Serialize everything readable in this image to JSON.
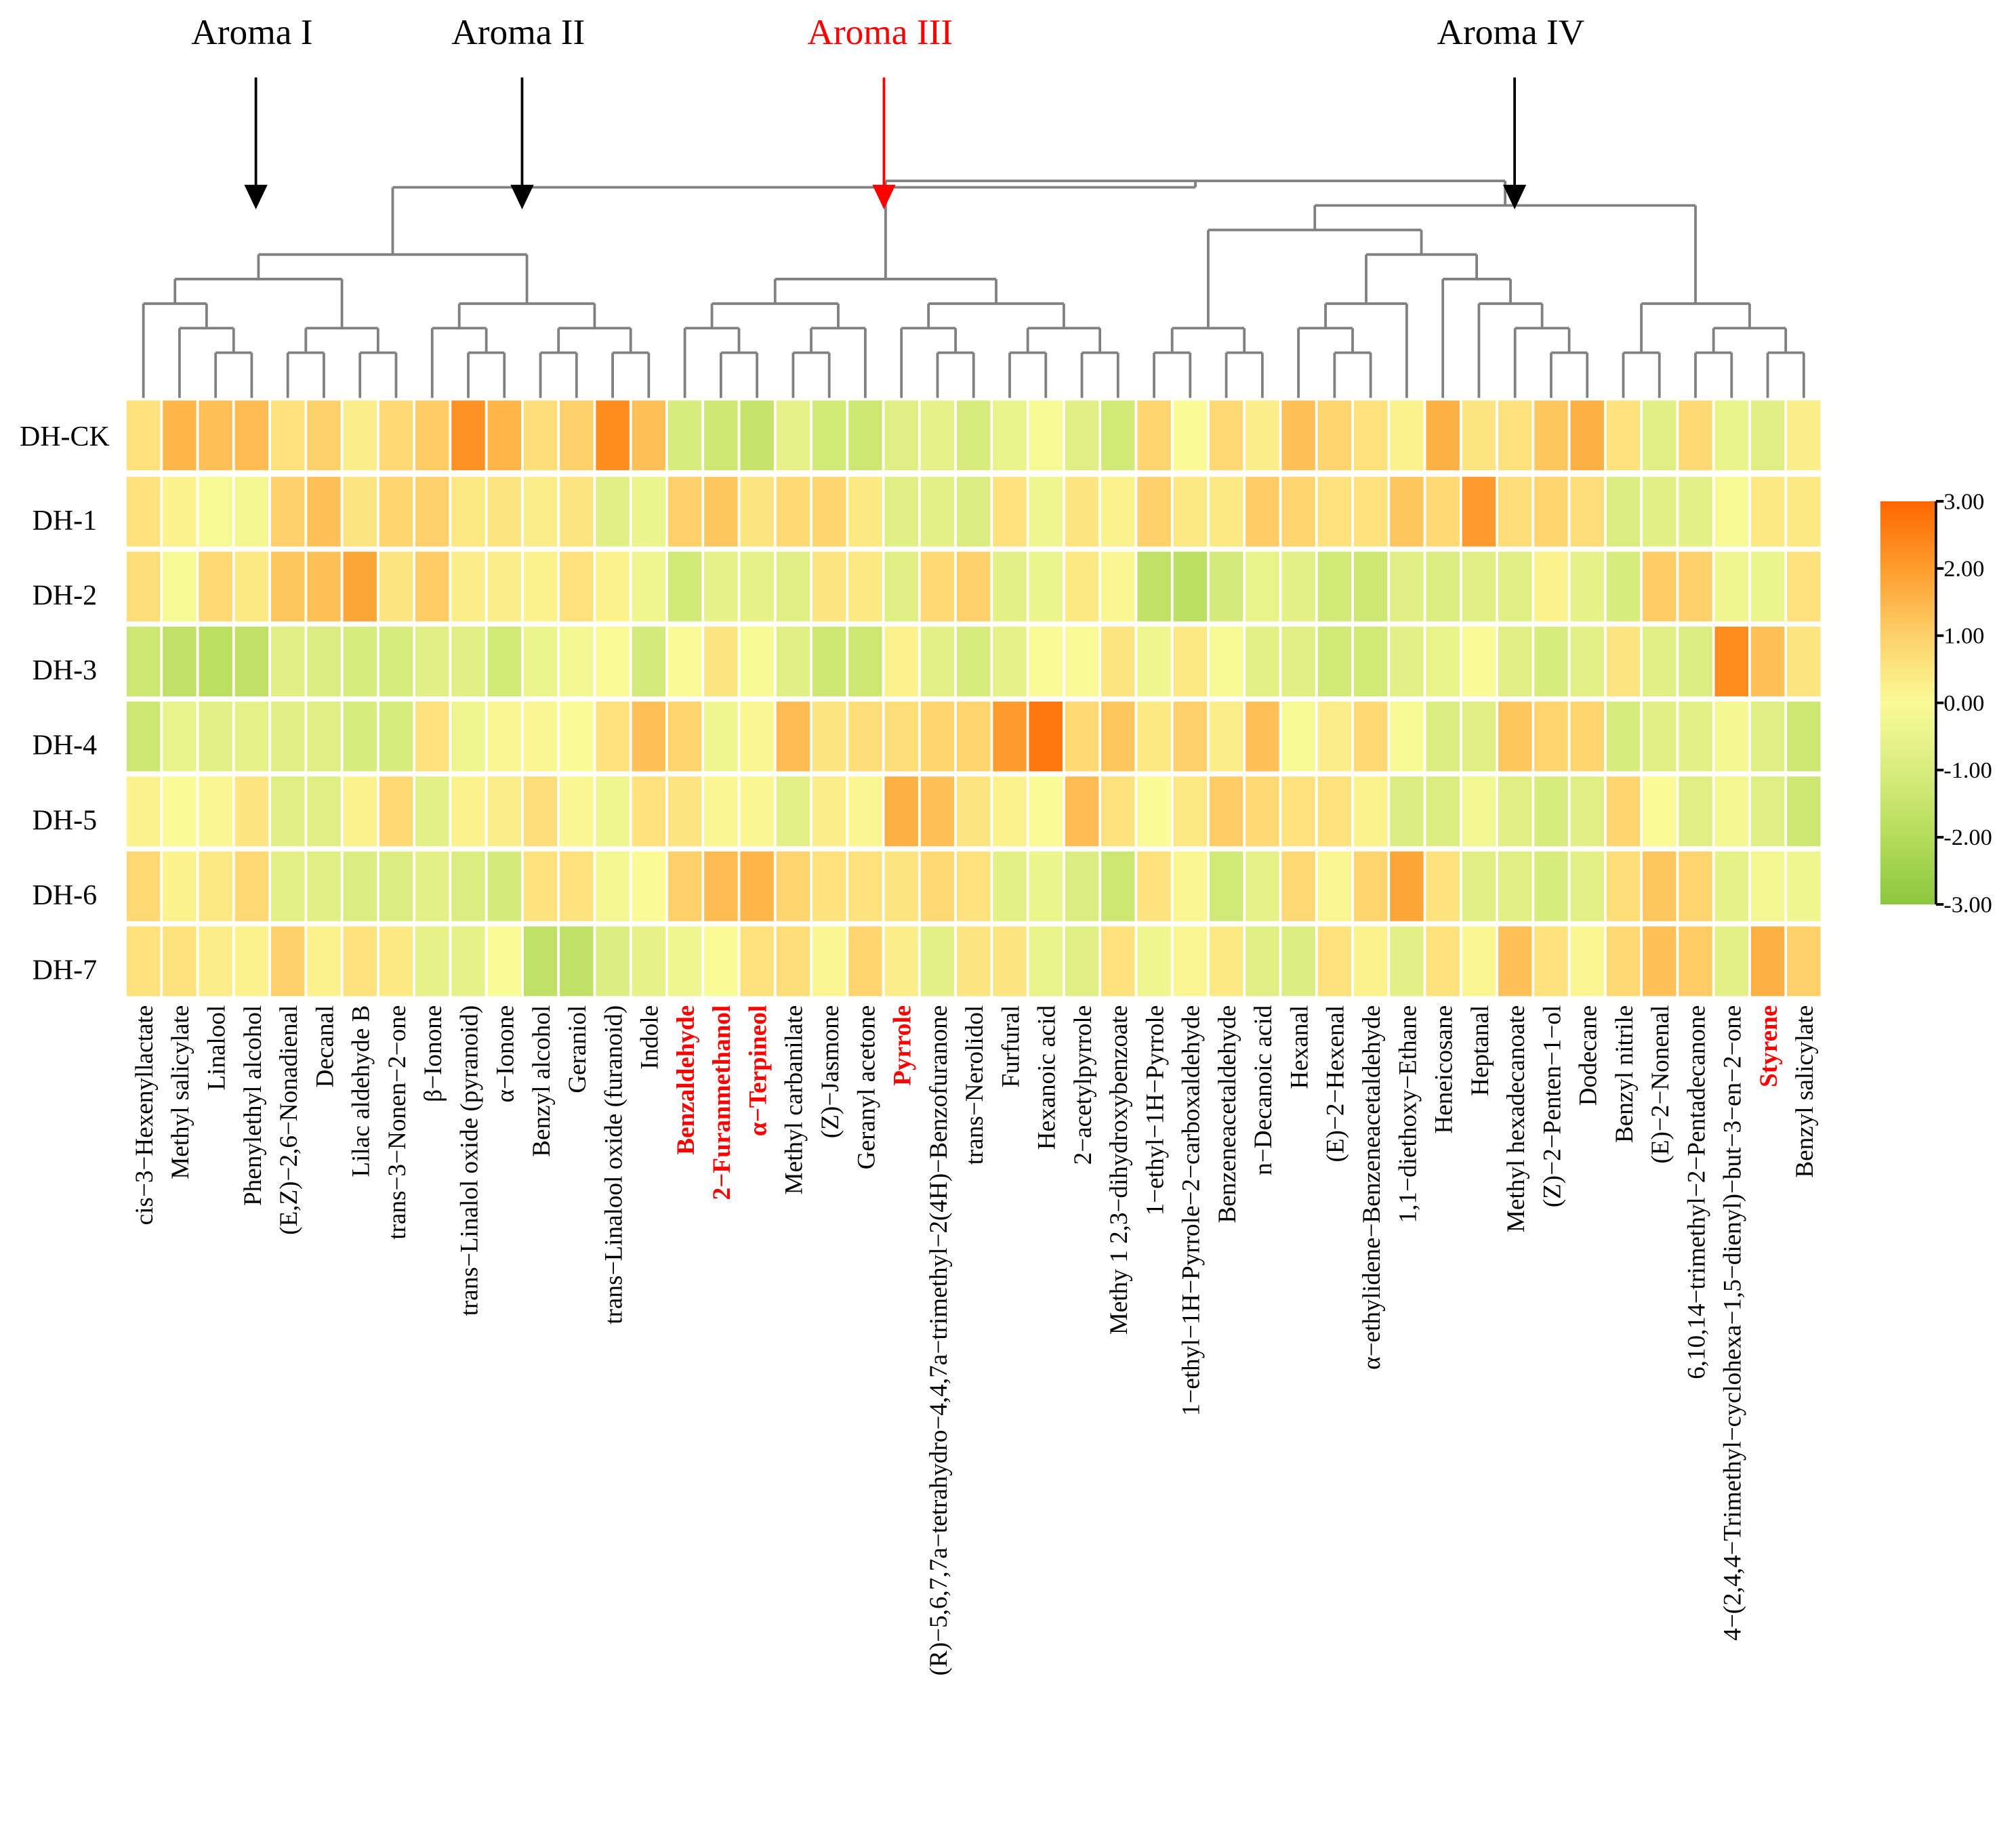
{
  "chart_data": {
    "type": "heatmap",
    "title": "",
    "groups": [
      {
        "label": "Aroma I",
        "color": "#000000"
      },
      {
        "label": "Aroma II",
        "color": "#000000"
      },
      {
        "label": "Aroma III",
        "color": "#ff0000"
      },
      {
        "label": "Aroma IV",
        "color": "#000000"
      }
    ],
    "rows": [
      "DH-CK",
      "DH-1",
      "DH-2",
      "DH-3",
      "DH-4",
      "DH-5",
      "DH-6",
      "DH-7"
    ],
    "columns": [
      "cis−3−Hexenyllactate",
      "Methyl salicylate",
      "Linalool",
      "Phenylethyl alcohol",
      "(E,Z)−2,6−Nonadienal",
      "Decanal",
      "Lilac aldehyde B",
      "trans−3−Nonen−2−one",
      "β−Ionone",
      "trans−Linalol oxide (pyranoid)",
      "α−Ionone",
      "Benzyl alcohol",
      "Geraniol",
      "trans−Linalool oxide (furanoid)",
      "Indole",
      "Benzaldehyde",
      "2−Furanmethanol",
      "α−Terpineol",
      "Methyl carbanilate",
      "(Z)−Jasmone",
      "Geranyl acetone",
      "Pyrrole",
      "(R)−5,6,7,7a−tetrahydro−4,4,7a−trimethyl−2(4H)−Benzofuranone",
      "trans−Nerolidol",
      "Furfural",
      "Hexanoic acid",
      "2−acetylpyrrole",
      "Methy 1 2,3−dihydroxybenzoate",
      "1−ethyl−1H−Pyrrole",
      "1−ethyl−1H−Pyrrole−2−carboxaldehyde",
      "Benzeneacetaldehyde",
      "n−Decanoic acid",
      "Hexanal",
      "(E)−2−Hexenal",
      "α−ethylidene−Benzeneacetaldehyde",
      "1,1−diethoxy−Ethane",
      "Heneicosane",
      "Heptanal",
      "Methyl hexadecanoate",
      "(Z)−2−Penten−1−ol",
      "Dodecane",
      "Benzyl nitrile",
      "(E)−2−Nonenal",
      "6,10,14−trimethyl−2−Pentadecanone",
      "4−(2,4,4−Trimethyl−cyclohexa−1,5−dienyl)−but−3−en−2−one",
      "Styrene",
      "Benzyl salicylate"
    ],
    "highlighted_columns": [
      "Benzaldehyde",
      "2−Furanmethanol",
      "α−Terpineol",
      "Pyrrole",
      "Styrene"
    ],
    "highlight_color": "#ff0000",
    "column_groups": [
      [
        1,
        8
      ],
      [
        9,
        15
      ],
      [
        16,
        28
      ],
      [
        29,
        47
      ]
    ],
    "column_tree": [
      [
        [
          [
            1,
            [
              2,
              [
                3,
                4
              ]
            ]
          ],
          [
            [
              5,
              6
            ],
            [
              7,
              8
            ]
          ]
        ],
        [
          [
            9,
            [
              10,
              11
            ]
          ],
          [
            [
              12,
              13
            ],
            [
              14,
              15
            ]
          ]
        ]
      ],
      [
        [
          [
            [
              16,
              [
                17,
                18
              ]
            ],
            [
              [
                19,
                20
              ],
              21
            ]
          ],
          [
            [
              22,
              [
                23,
                24
              ]
            ],
            [
              [
                25,
                26
              ],
              [
                27,
                28
              ]
            ]
          ]
        ],
        [
          [
            [
              [
                29,
                30
              ],
              [
                31,
                32
              ]
            ],
            [
              [
                [
                  33,
                  [
                    34,
                    35
                  ]
                ],
                36
              ],
              [
                37,
                [
                  38,
                  [
                    39,
                    [
                      40,
                      41
                    ]
                  ]
                ]
              ]
            ]
          ],
          [
            [
              42,
              43
            ],
            [
              [
                44,
                45
              ],
              [
                46,
                47
              ]
            ]
          ]
        ]
      ]
    ],
    "values": [
      [
        0.6,
        1.5,
        1.3,
        1.4,
        0.6,
        1.0,
        0.3,
        0.8,
        1.1,
        2.2,
        1.5,
        0.7,
        1.0,
        2.3,
        1.3,
        -1.0,
        -1.3,
        -1.5,
        -0.6,
        -1.2,
        -1.3,
        -0.8,
        -0.6,
        -1.0,
        -0.5,
        -0.1,
        -0.8,
        -1.2,
        0.9,
        0.0,
        0.8,
        0.3,
        1.3,
        0.9,
        0.6,
        0.2,
        1.6,
        0.5,
        0.6,
        1.2,
        1.6,
        0.6,
        -0.8,
        0.8,
        -0.5,
        -0.8,
        0.3
      ],
      [
        0.6,
        0.2,
        -0.1,
        -0.2,
        1.0,
        1.3,
        0.5,
        0.9,
        1.0,
        0.4,
        0.5,
        0.3,
        0.5,
        -0.8,
        -0.4,
        1.0,
        1.2,
        0.5,
        0.8,
        0.9,
        0.4,
        -0.8,
        -0.7,
        -0.9,
        0.6,
        -0.3,
        0.5,
        0.2,
        1.0,
        0.4,
        0.4,
        1.1,
        0.9,
        0.6,
        0.6,
        1.2,
        0.8,
        2.0,
        0.7,
        0.9,
        0.7,
        -0.9,
        -0.8,
        -0.7,
        -0.1,
        0.4,
        0.4
      ],
      [
        0.7,
        -0.1,
        0.8,
        0.4,
        1.2,
        1.3,
        1.8,
        0.5,
        1.1,
        0.3,
        0.3,
        0.2,
        0.6,
        0.2,
        -0.3,
        -1.2,
        -0.6,
        -0.6,
        -0.8,
        0.5,
        0.4,
        -0.8,
        0.8,
        1.0,
        -0.7,
        -0.4,
        0.4,
        0.1,
        -1.7,
        -1.8,
        -1.1,
        -0.5,
        -0.7,
        -1.2,
        -1.3,
        -0.8,
        -0.9,
        -0.8,
        -0.8,
        0.2,
        -0.6,
        -1.0,
        1.1,
        1.0,
        -0.3,
        -0.4,
        0.6
      ],
      [
        -1.3,
        -1.7,
        -1.8,
        -1.7,
        -0.8,
        -0.9,
        -1.0,
        -1.0,
        -0.8,
        -0.8,
        -1.2,
        -0.4,
        -0.2,
        0.0,
        -1.1,
        0.0,
        0.5,
        -0.1,
        -0.8,
        -1.3,
        -1.3,
        0.2,
        -0.7,
        -1.0,
        -0.6,
        0.0,
        0.0,
        0.5,
        -0.3,
        0.4,
        -0.1,
        -0.7,
        -0.8,
        -1.2,
        -1.2,
        -0.7,
        -0.5,
        0.0,
        -0.8,
        -1.0,
        -0.7,
        0.5,
        -0.8,
        -0.9,
        2.3,
        1.3,
        0.5
      ],
      [
        -1.3,
        -0.5,
        -0.7,
        -0.6,
        -0.8,
        -0.8,
        -1.0,
        -1.0,
        0.6,
        -0.3,
        0.1,
        0.1,
        0.0,
        0.6,
        1.3,
        0.9,
        -0.3,
        0.1,
        1.4,
        0.5,
        0.7,
        0.7,
        0.9,
        0.9,
        2.0,
        2.7,
        0.8,
        1.2,
        0.4,
        1.0,
        0.3,
        1.3,
        -0.1,
        0.3,
        0.8,
        -0.1,
        -0.9,
        -0.8,
        1.2,
        0.9,
        0.9,
        -1.0,
        -0.8,
        -0.7,
        -0.2,
        -0.8,
        -1.3
      ],
      [
        0.2,
        0.0,
        0.1,
        0.5,
        -0.8,
        -0.8,
        0.2,
        0.8,
        -0.7,
        0.2,
        0.3,
        0.7,
        0.1,
        -0.3,
        0.6,
        0.5,
        0.1,
        0.1,
        -0.7,
        0.3,
        0.1,
        1.6,
        1.3,
        0.5,
        0.2,
        0.0,
        1.4,
        0.6,
        0.0,
        0.4,
        1.1,
        0.8,
        0.6,
        0.6,
        0.2,
        -0.9,
        -0.9,
        -0.2,
        -0.8,
        -1.0,
        -0.8,
        0.9,
        0.0,
        -0.8,
        -0.2,
        -0.8,
        -1.3
      ],
      [
        0.8,
        0.2,
        0.4,
        0.8,
        -0.7,
        -0.8,
        -0.9,
        -0.9,
        -0.7,
        -0.9,
        -1.1,
        0.6,
        0.6,
        -0.2,
        0.0,
        1.0,
        1.4,
        1.5,
        0.9,
        0.6,
        0.6,
        0.5,
        0.8,
        0.6,
        -0.7,
        -0.4,
        -0.9,
        -1.3,
        0.6,
        0.1,
        -1.2,
        -0.6,
        0.8,
        0.1,
        0.9,
        1.8,
        0.6,
        -0.8,
        -0.8,
        -1.0,
        -0.7,
        0.7,
        1.2,
        0.9,
        -0.6,
        -0.2,
        -0.3
      ],
      [
        0.6,
        0.6,
        0.3,
        0.2,
        1.0,
        0.2,
        0.6,
        0.4,
        -0.6,
        -0.6,
        0.0,
        -1.7,
        -1.7,
        -0.9,
        -0.6,
        -0.3,
        0.0,
        0.6,
        0.7,
        0.1,
        0.9,
        0.3,
        -0.7,
        0.5,
        0.5,
        -0.5,
        -0.8,
        0.6,
        -0.3,
        0.1,
        0.4,
        -0.8,
        -0.9,
        0.6,
        0.2,
        -0.7,
        0.6,
        0.1,
        1.3,
        0.6,
        0.1,
        0.8,
        1.3,
        1.1,
        -0.7,
        1.6,
        1.0
      ]
    ],
    "color_scale": {
      "range": [
        -3,
        3
      ],
      "ticks": [
        "3.00",
        "2.00",
        "1.00",
        "0.00",
        "-1.00",
        "-2.00",
        "-3.00"
      ],
      "stops": [
        {
          "value": -3,
          "color": "#8cc63f"
        },
        {
          "value": -2,
          "color": "#b4dc5a"
        },
        {
          "value": -1,
          "color": "#d8ec7e"
        },
        {
          "value": 0,
          "color": "#fafa96"
        },
        {
          "value": 1,
          "color": "#fed06a"
        },
        {
          "value": 2,
          "color": "#fd9c2c"
        },
        {
          "value": 3,
          "color": "#ff6600"
        }
      ],
      "placement": "right"
    }
  }
}
